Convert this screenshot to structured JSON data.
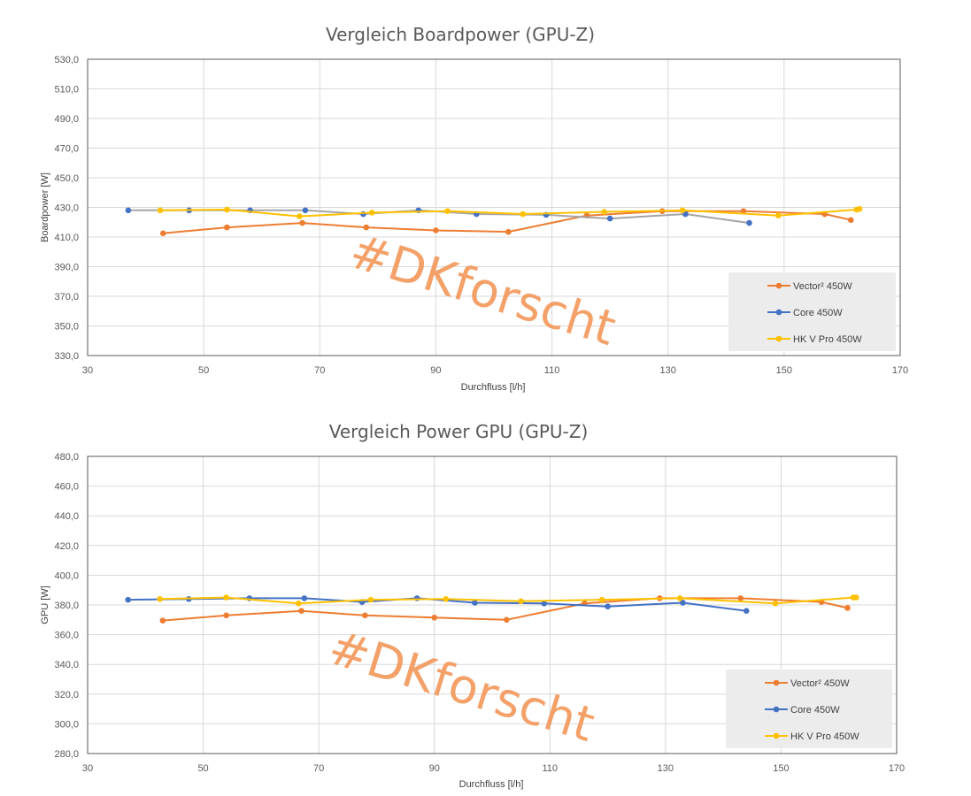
{
  "colors": {
    "vector": "#ed7d31",
    "core": "#4472c4",
    "hk": "#ffc000",
    "core_line_top": "#a5a5a5",
    "grid": "#d9d9d9",
    "legend_bg": "#ececec",
    "watermark": "#f39a5c"
  },
  "watermark": "#DKforscht",
  "chart_data": [
    {
      "type": "line",
      "title": "Vergleich Boardpower (GPU-Z)",
      "xlabel": "Durchfluss [l/h]",
      "ylabel": "Boardpower  [W]",
      "xlim": [
        30,
        170
      ],
      "ylim": [
        330,
        530
      ],
      "xticks": [
        "30",
        "50",
        "70",
        "90",
        "110",
        "130",
        "150",
        "170"
      ],
      "yticks": [
        "530,0",
        "510,0",
        "490,0",
        "470,0",
        "450,0",
        "430,0",
        "410,0",
        "390,0",
        "370,0",
        "350,0",
        "330,0"
      ],
      "grid": true,
      "legend": "bottom-right",
      "series": [
        {
          "name": "Vector² 450W",
          "color_key": "vector",
          "points": [
            [
              43,
              412.5
            ],
            [
              54,
              416.5
            ],
            [
              67,
              419.5
            ],
            [
              78,
              416.5
            ],
            [
              90,
              414.5
            ],
            [
              102.5,
              413.5
            ],
            [
              116,
              424.5
            ],
            [
              129,
              427.5
            ],
            [
              143,
              427.5
            ],
            [
              157,
              425.5
            ],
            [
              161.5,
              421.5
            ]
          ]
        },
        {
          "name": "Core 450W",
          "color_key": "core",
          "points": [
            [
              37,
              428
            ],
            [
              47.5,
              428
            ],
            [
              58,
              428
            ],
            [
              67.5,
              428
            ],
            [
              77.5,
              425.5
            ],
            [
              87,
              428
            ],
            [
              97,
              425.5
            ],
            [
              109,
              425
            ],
            [
              120,
              422.5
            ],
            [
              133,
              425.5
            ],
            [
              144,
              419.5
            ]
          ]
        },
        {
          "name": "HK V Pro 450W",
          "color_key": "hk",
          "points": [
            [
              42.5,
              428
            ],
            [
              54,
              428.5
            ],
            [
              66.5,
              424
            ],
            [
              79,
              426.5
            ],
            [
              92,
              427.5
            ],
            [
              105,
              425.5
            ],
            [
              119,
              427
            ],
            [
              132.5,
              428
            ],
            [
              149,
              424.5
            ],
            [
              162.5,
              428.5
            ],
            [
              163,
              429
            ]
          ]
        }
      ]
    },
    {
      "type": "line",
      "title": "Vergleich Power GPU (GPU-Z)",
      "xlabel": "Durchfluss [l/h]",
      "ylabel": "GPU  [W]",
      "xlim": [
        30,
        170
      ],
      "ylim": [
        280,
        480
      ],
      "xticks": [
        "30",
        "50",
        "70",
        "90",
        "110",
        "130",
        "150",
        "170"
      ],
      "yticks": [
        "480,0",
        "460,0",
        "440,0",
        "420,0",
        "400,0",
        "380,0",
        "360,0",
        "340,0",
        "320,0",
        "300,0",
        "280,0"
      ],
      "grid": true,
      "legend": "bottom-right",
      "series": [
        {
          "name": "Vector² 450W",
          "color_key": "vector",
          "points": [
            [
              43,
              369.5
            ],
            [
              54,
              373
            ],
            [
              67,
              376
            ],
            [
              78,
              373
            ],
            [
              90,
              371.5
            ],
            [
              102.5,
              370
            ],
            [
              116,
              381
            ],
            [
              129,
              384.5
            ],
            [
              143,
              384.5
            ],
            [
              157,
              382
            ],
            [
              161.5,
              378
            ]
          ]
        },
        {
          "name": "Core 450W",
          "color_key": "core",
          "points": [
            [
              37,
              383.5
            ],
            [
              47.5,
              384
            ],
            [
              58,
              384.5
            ],
            [
              67.5,
              384.5
            ],
            [
              77.5,
              382
            ],
            [
              87,
              384.5
            ],
            [
              97,
              381.5
            ],
            [
              109,
              381
            ],
            [
              120,
              379
            ],
            [
              133,
              381.5
            ],
            [
              144,
              376
            ]
          ]
        },
        {
          "name": "HK V Pro 450W",
          "color_key": "hk",
          "points": [
            [
              42.5,
              384
            ],
            [
              54,
              385
            ],
            [
              66.5,
              381
            ],
            [
              79,
              383.5
            ],
            [
              92,
              384
            ],
            [
              105,
              382.5
            ],
            [
              119,
              383.5
            ],
            [
              132.5,
              384.5
            ],
            [
              149,
              381
            ],
            [
              162.5,
              385
            ],
            [
              163,
              385
            ]
          ]
        }
      ]
    }
  ]
}
